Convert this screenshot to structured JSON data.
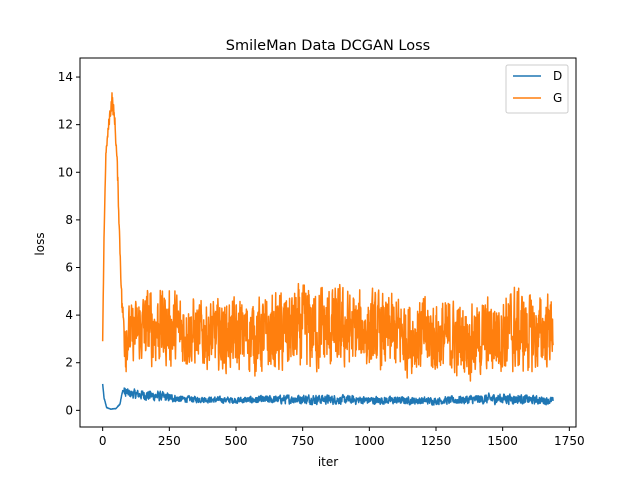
{
  "chart_data": {
    "type": "line",
    "title": "SmileMan Data DCGAN Loss",
    "xlabel": "iter",
    "ylabel": "loss",
    "xlim": [
      -85,
      1775
    ],
    "ylim": [
      -0.7,
      14.8
    ],
    "xticks": [
      0,
      250,
      500,
      750,
      1000,
      1250,
      1500,
      1750
    ],
    "yticks": [
      0,
      2,
      4,
      6,
      8,
      10,
      12,
      14
    ],
    "grid": false,
    "legend": {
      "placement": "top-right",
      "entries": [
        "D",
        "G"
      ]
    },
    "n_points": 1690,
    "series": [
      {
        "name": "D",
        "color": "#1f77b4",
        "envelope": [
          {
            "x": 0,
            "low": 1.1,
            "high": 1.12
          },
          {
            "x": 5,
            "low": 0.45,
            "high": 0.6
          },
          {
            "x": 15,
            "low": 0.08,
            "high": 0.15
          },
          {
            "x": 30,
            "low": 0.03,
            "high": 0.07
          },
          {
            "x": 50,
            "low": 0.05,
            "high": 0.1
          },
          {
            "x": 65,
            "low": 0.2,
            "high": 0.35
          },
          {
            "x": 75,
            "low": 0.7,
            "high": 0.95
          },
          {
            "x": 100,
            "low": 0.45,
            "high": 0.95
          },
          {
            "x": 200,
            "low": 0.3,
            "high": 0.9
          },
          {
            "x": 300,
            "low": 0.3,
            "high": 0.65
          },
          {
            "x": 500,
            "low": 0.25,
            "high": 0.6
          },
          {
            "x": 750,
            "low": 0.2,
            "high": 0.75
          },
          {
            "x": 1000,
            "low": 0.2,
            "high": 0.65
          },
          {
            "x": 1250,
            "low": 0.2,
            "high": 0.6
          },
          {
            "x": 1500,
            "low": 0.2,
            "high": 0.8
          },
          {
            "x": 1689,
            "low": 0.2,
            "high": 0.6
          }
        ]
      },
      {
        "name": "G",
        "color": "#ff7f0e",
        "envelope": [
          {
            "x": 0,
            "low": 2.9,
            "high": 2.9
          },
          {
            "x": 5,
            "low": 6.5,
            "high": 8.0
          },
          {
            "x": 12,
            "low": 10.5,
            "high": 11.0
          },
          {
            "x": 25,
            "low": 11.5,
            "high": 13.0
          },
          {
            "x": 35,
            "low": 12.0,
            "high": 14.1
          },
          {
            "x": 45,
            "low": 11.5,
            "high": 13.0
          },
          {
            "x": 55,
            "low": 9.5,
            "high": 11.0
          },
          {
            "x": 62,
            "low": 7.0,
            "high": 8.5
          },
          {
            "x": 72,
            "low": 3.5,
            "high": 5.5
          },
          {
            "x": 85,
            "low": 1.6,
            "high": 4.5
          },
          {
            "x": 180,
            "low": 1.4,
            "high": 5.8
          },
          {
            "x": 400,
            "low": 1.3,
            "high": 5.0
          },
          {
            "x": 600,
            "low": 1.0,
            "high": 5.3
          },
          {
            "x": 800,
            "low": 1.0,
            "high": 5.9
          },
          {
            "x": 1000,
            "low": 1.2,
            "high": 5.4
          },
          {
            "x": 1200,
            "low": 1.0,
            "high": 5.3
          },
          {
            "x": 1400,
            "low": 0.9,
            "high": 5.0
          },
          {
            "x": 1550,
            "low": 1.0,
            "high": 5.8
          },
          {
            "x": 1620,
            "low": 1.0,
            "high": 5.3
          },
          {
            "x": 1689,
            "low": 1.6,
            "high": 5.4
          }
        ]
      }
    ]
  }
}
